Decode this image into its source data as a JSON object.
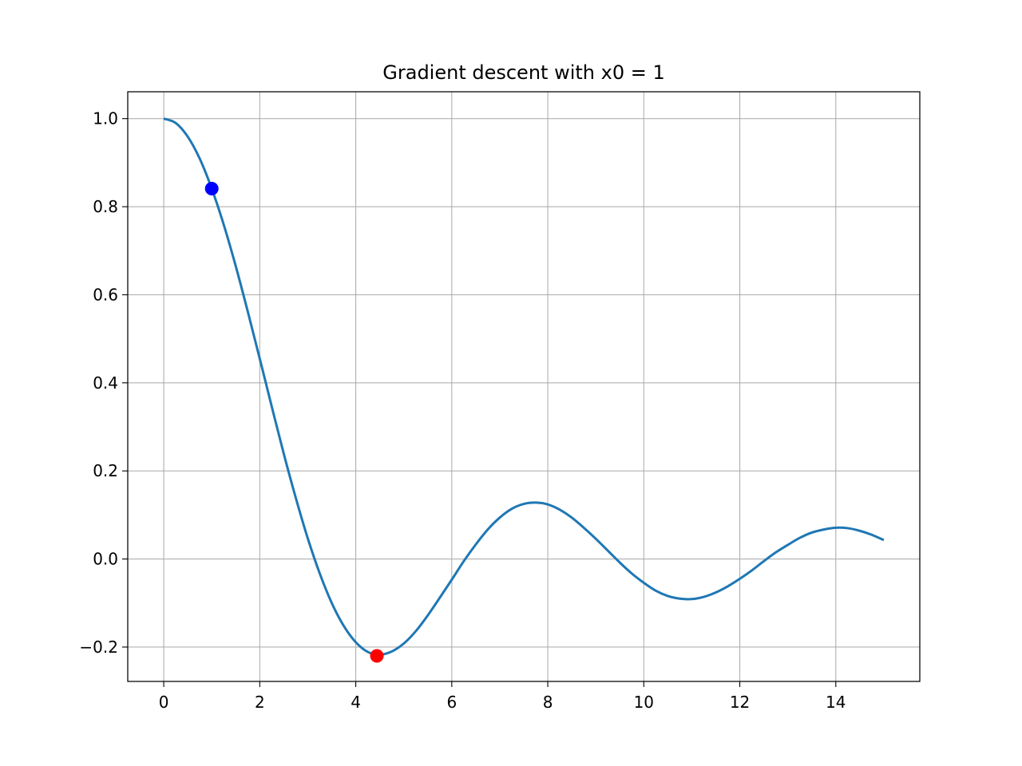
{
  "chart_data": {
    "type": "line",
    "title": "Gradient descent with x0 = 1",
    "xlabel": "",
    "ylabel": "",
    "xlim": [
      -0.75,
      15.75
    ],
    "ylim": [
      -0.278,
      1.061
    ],
    "grid": true,
    "xticks": [
      "0",
      "2",
      "4",
      "6",
      "8",
      "10",
      "12",
      "14"
    ],
    "xtick_values": [
      0,
      2,
      4,
      6,
      8,
      10,
      12,
      14
    ],
    "yticks": [
      "−0.2",
      "0.0",
      "0.2",
      "0.4",
      "0.6",
      "0.8",
      "1.0"
    ],
    "ytick_values": [
      -0.2,
      0,
      0.2,
      0.4,
      0.6,
      0.8,
      1.0
    ],
    "series": [
      {
        "color": "#1f77b4",
        "x": [
          0,
          0.25,
          0.5,
          0.75,
          1,
          1.25,
          1.5,
          1.75,
          2,
          2.25,
          2.5,
          2.75,
          3,
          3.25,
          3.5,
          3.75,
          4,
          4.25,
          4.5,
          4.75,
          5,
          5.25,
          5.5,
          5.75,
          6,
          6.25,
          6.5,
          6.75,
          7,
          7.25,
          7.5,
          7.75,
          8,
          8.25,
          8.5,
          8.75,
          9,
          9.25,
          9.5,
          9.75,
          10,
          10.25,
          10.5,
          10.75,
          11,
          11.25,
          11.5,
          11.75,
          12,
          12.25,
          12.5,
          12.75,
          13,
          13.25,
          13.5,
          13.75,
          14,
          14.25,
          14.5,
          14.75,
          15
        ],
        "y": [
          1,
          0.99,
          0.959,
          0.909,
          0.841,
          0.759,
          0.665,
          0.562,
          0.455,
          0.346,
          0.239,
          0.139,
          0.047,
          -0.033,
          -0.1,
          -0.152,
          -0.189,
          -0.211,
          -0.217,
          -0.21,
          -0.192,
          -0.164,
          -0.128,
          -0.088,
          -0.047,
          -0.005,
          0.033,
          0.067,
          0.094,
          0.114,
          0.125,
          0.128,
          0.124,
          0.112,
          0.094,
          0.071,
          0.046,
          0.019,
          -0.008,
          -0.033,
          -0.054,
          -0.072,
          -0.084,
          -0.09,
          -0.091,
          -0.086,
          -0.076,
          -0.062,
          -0.045,
          -0.026,
          -0.005,
          0.015,
          0.032,
          0.048,
          0.06,
          0.067,
          0.071,
          0.07,
          0.064,
          0.055,
          0.043
        ]
      }
    ],
    "points": [
      {
        "x": 1.0,
        "y": 0.841,
        "color": "#0000ff"
      },
      {
        "x": 4.44,
        "y": -0.22,
        "color": "#ff0000"
      }
    ]
  }
}
